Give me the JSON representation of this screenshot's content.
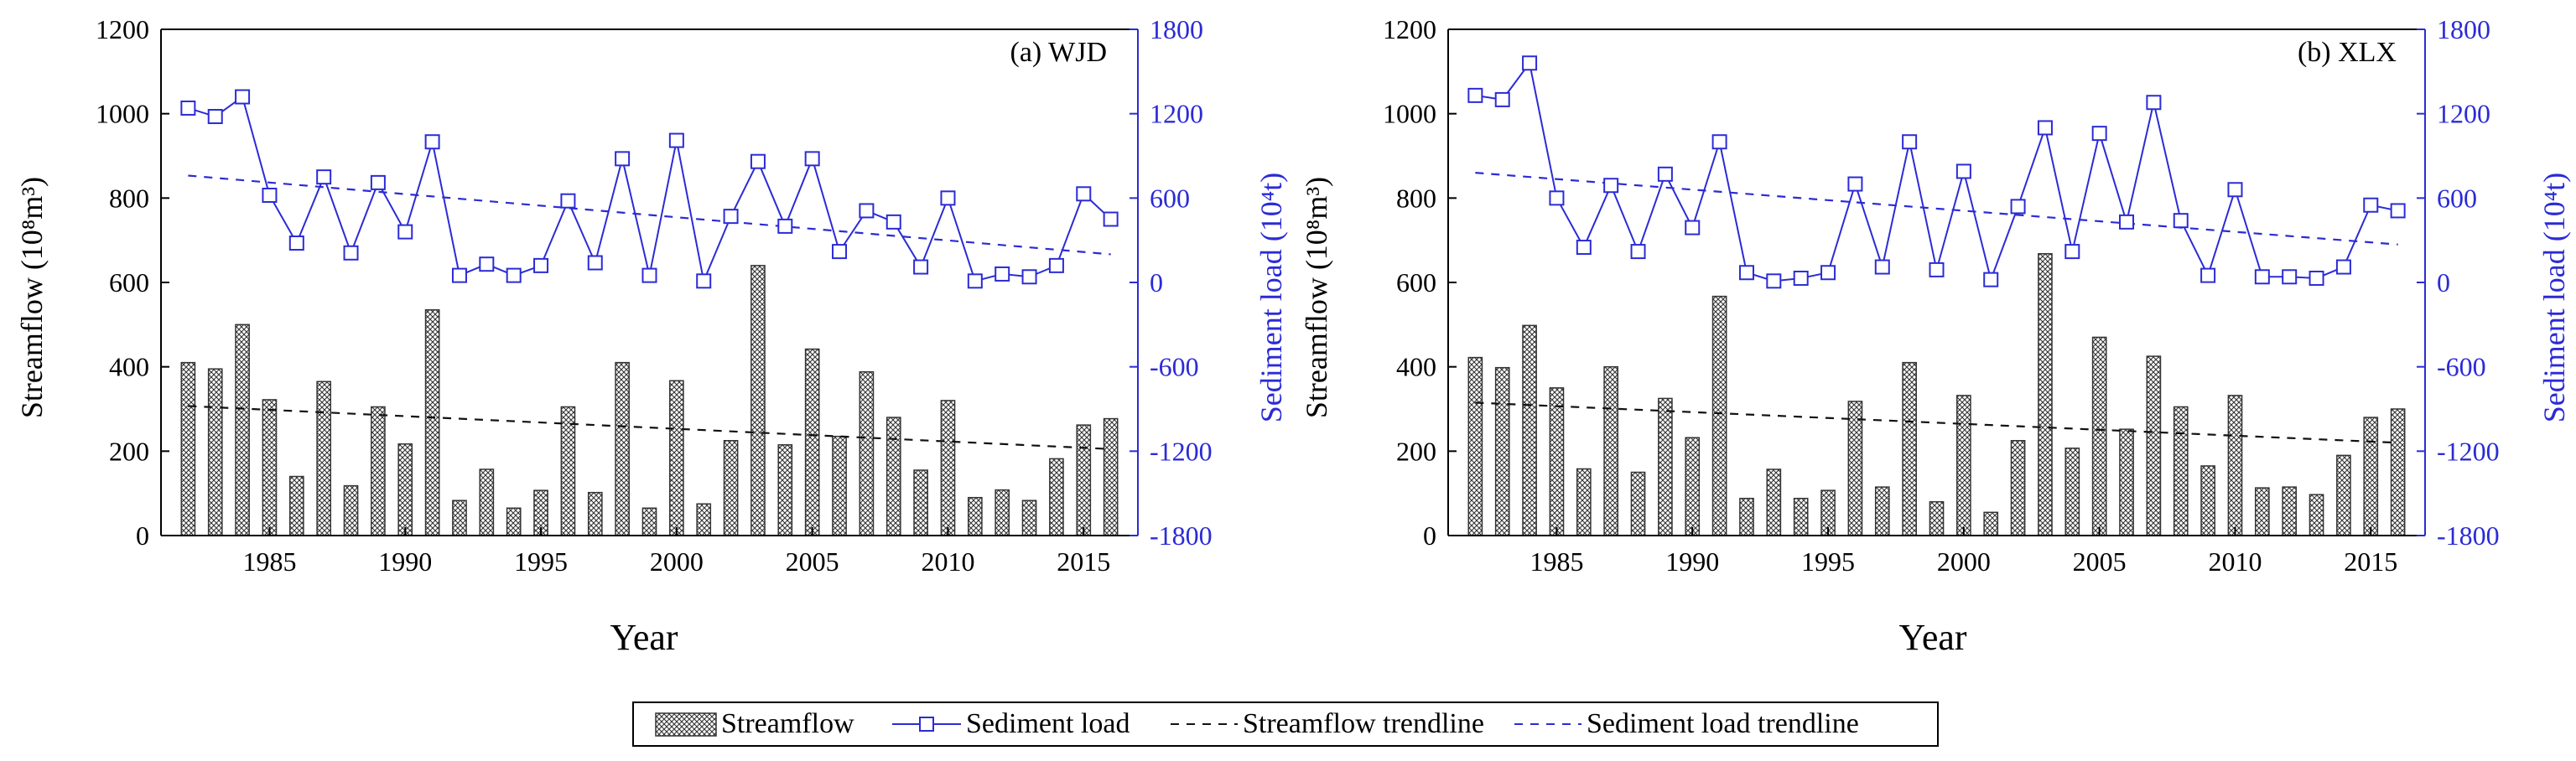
{
  "figure": {
    "x_axis_title": "Year",
    "left_axis_title": "Streamflow (10⁸m³)",
    "right_axis_title": "Sediment load (10⁴t)",
    "colors": {
      "bars": "#333333",
      "bar_fill": "#ffffff",
      "sediment": "#2b2bd6",
      "streamflow_trend": "#111111",
      "sediment_trend": "#2b2bd6"
    }
  },
  "legend": {
    "streamflow": "Streamflow",
    "sediment": "Sediment load",
    "streamflow_trend": "Streamflow trendline",
    "sediment_trend": "Sediment load trendline"
  },
  "chart_data": [
    {
      "type": "bar",
      "title": "(a) WJD",
      "xlabel": "Year",
      "ylabel": "Streamflow (10⁸m³)",
      "y2label": "Sediment load (10⁴t)",
      "x": [
        1982,
        1983,
        1984,
        1985,
        1986,
        1987,
        1988,
        1989,
        1990,
        1991,
        1992,
        1993,
        1994,
        1995,
        1996,
        1997,
        1998,
        1999,
        2000,
        2001,
        2002,
        2003,
        2004,
        2005,
        2006,
        2007,
        2008,
        2009,
        2010,
        2011,
        2012,
        2013,
        2014,
        2015,
        2016
      ],
      "xlim": [
        1981,
        2017
      ],
      "xticks": [
        1985,
        1990,
        1995,
        2000,
        2005,
        2010,
        2015
      ],
      "ylim": [
        0,
        1200
      ],
      "yticks": [
        0,
        200,
        400,
        600,
        800,
        1000,
        1200
      ],
      "y2lim": [
        -1800,
        1800
      ],
      "y2ticks": [
        -1800,
        -1200,
        -600,
        0,
        600,
        1200,
        1800
      ],
      "series": [
        {
          "name": "Streamflow",
          "type": "bar",
          "axis": "left",
          "values": [
            410,
            395,
            500,
            322,
            140,
            365,
            118,
            305,
            217,
            535,
            83,
            157,
            65,
            107,
            305,
            102,
            410,
            65,
            367,
            75,
            225,
            640,
            215,
            442,
            235,
            388,
            280,
            155,
            320,
            90,
            108,
            83,
            182,
            262,
            277
          ]
        },
        {
          "name": "Sediment load",
          "type": "line",
          "axis": "right",
          "values": [
            1240,
            1180,
            1320,
            620,
            280,
            750,
            210,
            710,
            360,
            1000,
            50,
            130,
            50,
            120,
            580,
            140,
            880,
            50,
            1010,
            10,
            470,
            860,
            400,
            880,
            220,
            510,
            430,
            110,
            600,
            10,
            60,
            40,
            120,
            630,
            450
          ]
        }
      ],
      "trendlines": [
        {
          "name": "Streamflow trendline",
          "axis": "left",
          "start": [
            1982,
            307
          ],
          "end": [
            2016,
            205
          ]
        },
        {
          "name": "Sediment load trendline",
          "axis": "right",
          "start": [
            1982,
            760
          ],
          "end": [
            2016,
            200
          ]
        }
      ]
    },
    {
      "type": "bar",
      "title": "(b) XLX",
      "xlabel": "Year",
      "ylabel": "Streamflow (10⁸m³)",
      "y2label": "Sediment load (10⁴t)",
      "x": [
        1982,
        1983,
        1984,
        1985,
        1986,
        1987,
        1988,
        1989,
        1990,
        1991,
        1992,
        1993,
        1994,
        1995,
        1996,
        1997,
        1998,
        1999,
        2000,
        2001,
        2002,
        2003,
        2004,
        2005,
        2006,
        2007,
        2008,
        2009,
        2010,
        2011,
        2012,
        2013,
        2014,
        2015,
        2016
      ],
      "xlim": [
        1981,
        2017
      ],
      "xticks": [
        1985,
        1990,
        1995,
        2000,
        2005,
        2010,
        2015
      ],
      "ylim": [
        0,
        1200
      ],
      "yticks": [
        0,
        200,
        400,
        600,
        800,
        1000,
        1200
      ],
      "y2lim": [
        -1800,
        1800
      ],
      "y2ticks": [
        -1800,
        -1200,
        -600,
        0,
        600,
        1200,
        1800
      ],
      "series": [
        {
          "name": "Streamflow",
          "type": "bar",
          "axis": "left",
          "values": [
            422,
            398,
            498,
            350,
            158,
            400,
            150,
            325,
            232,
            567,
            88,
            157,
            88,
            107,
            318,
            115,
            410,
            80,
            332,
            55,
            225,
            668,
            207,
            470,
            252,
            425,
            305,
            165,
            332,
            113,
            115,
            97,
            190,
            280,
            300
          ]
        },
        {
          "name": "Sediment load",
          "type": "line",
          "axis": "right",
          "values": [
            1330,
            1300,
            1560,
            600,
            250,
            690,
            220,
            770,
            390,
            1000,
            70,
            10,
            30,
            70,
            700,
            110,
            1000,
            90,
            790,
            20,
            540,
            1100,
            220,
            1060,
            430,
            1280,
            440,
            50,
            660,
            40,
            40,
            30,
            110,
            550,
            510
          ]
        }
      ],
      "trendlines": [
        {
          "name": "Streamflow trendline",
          "axis": "left",
          "start": [
            1982,
            315
          ],
          "end": [
            2016,
            220
          ]
        },
        {
          "name": "Sediment load trendline",
          "axis": "right",
          "start": [
            1982,
            780
          ],
          "end": [
            2016,
            270
          ]
        }
      ]
    }
  ]
}
